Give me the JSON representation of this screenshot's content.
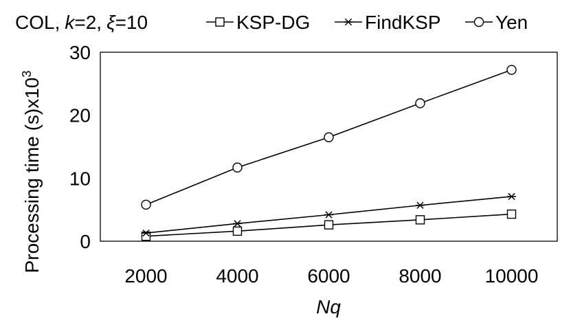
{
  "chart_data": {
    "type": "line",
    "title": "COL, k=2, ξ=10",
    "title_parts": {
      "dataset": "COL,",
      "k_label": "k",
      "k_value": "=2,",
      "xi_label": "ξ",
      "xi_value": "=10"
    },
    "xlabel": "Nq",
    "ylabel": "Processing time (s)x10",
    "ylabel_superscript": "3",
    "x": [
      2000,
      4000,
      6000,
      8000,
      10000
    ],
    "xlim": [
      1000,
      11000
    ],
    "ylim": [
      0,
      30
    ],
    "yticks": [
      0,
      10,
      20,
      30
    ],
    "grid": false,
    "legend_position": "top",
    "series": [
      {
        "name": "KSP-DG",
        "marker": "square",
        "values": [
          0.8,
          1.6,
          2.6,
          3.4,
          4.3
        ]
      },
      {
        "name": "FindKSP",
        "marker": "asterisk",
        "values": [
          1.3,
          2.8,
          4.2,
          5.7,
          7.1
        ]
      },
      {
        "name": "Yen",
        "marker": "circle",
        "values": [
          5.8,
          11.7,
          16.5,
          21.9,
          27.2
        ]
      }
    ],
    "colors": {
      "line": "#000000",
      "background": "#ffffff"
    }
  }
}
